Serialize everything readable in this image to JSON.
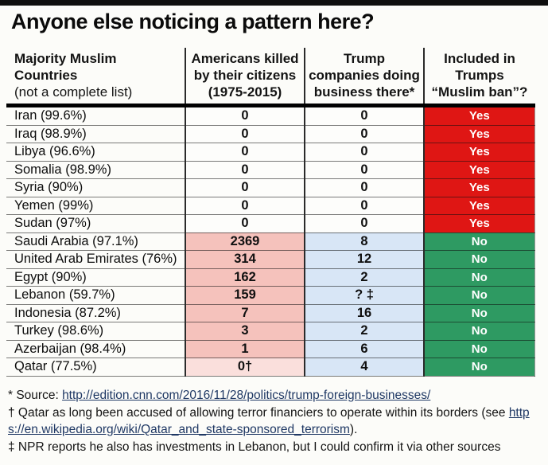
{
  "title": "Anyone else noticing a pattern here?",
  "table": {
    "headers": [
      {
        "lines": [
          "Majority Muslim Countries",
          "(not a complete list)"
        ]
      },
      {
        "lines": [
          "Americans killed",
          "by their citizens",
          "(1975-2015)"
        ]
      },
      {
        "lines": [
          "Trump",
          "companies doing",
          "business there*"
        ]
      },
      {
        "lines": [
          "Included in",
          "Trumps",
          "“Muslim ban”?"
        ]
      }
    ],
    "rows": [
      {
        "country": "Iran (99.6%)",
        "killed": "0",
        "business": "0",
        "ban": "Yes"
      },
      {
        "country": "Iraq (98.9%)",
        "killed": "0",
        "business": "0",
        "ban": "Yes"
      },
      {
        "country": "Libya (96.6%)",
        "killed": "0",
        "business": "0",
        "ban": "Yes"
      },
      {
        "country": "Somalia (98.9%)",
        "killed": "0",
        "business": "0",
        "ban": "Yes"
      },
      {
        "country": "Syria (90%)",
        "killed": "0",
        "business": "0",
        "ban": "Yes"
      },
      {
        "country": "Yemen (99%)",
        "killed": "0",
        "business": "0",
        "ban": "Yes"
      },
      {
        "country": "Sudan (97%)",
        "killed": "0",
        "business": "0",
        "ban": "Yes"
      },
      {
        "country": "Saudi Arabia (97.1%)",
        "killed": "2369",
        "business": "8",
        "ban": "No"
      },
      {
        "country": "United Arab Emirates (76%)",
        "killed": "314",
        "business": "12",
        "ban": "No"
      },
      {
        "country": "Egypt (90%)",
        "killed": "162",
        "business": "2",
        "ban": "No"
      },
      {
        "country": "Lebanon (59.7%)",
        "killed": "159",
        "business": "? ‡",
        "ban": "No"
      },
      {
        "country": "Indonesia (87.2%)",
        "killed": "7",
        "business": "16",
        "ban": "No"
      },
      {
        "country": "Turkey (98.6%)",
        "killed": "3",
        "business": "2",
        "ban": "No"
      },
      {
        "country": "Azerbaijan (98.4%)",
        "killed": "1",
        "business": "6",
        "ban": "No"
      },
      {
        "country": "Qatar (77.5%)",
        "killed": "0†",
        "business": "4",
        "ban": "No"
      }
    ]
  },
  "footnotes": {
    "source_prefix": "* Source: ",
    "source_link": "http://edition.cnn.com/2016/11/28/politics/trump-foreign-businesses/",
    "qatar_prefix": "† Qatar as long been accused of allowing terror financiers to operate within its borders (see ",
    "qatar_link": "https://en.wikipedia.org/wiki/Qatar_and_state-sponsored_terrorism",
    "qatar_suffix": ").",
    "npr_note": "‡ NPR reports he also has investments in Lebanon, but I could confirm it via other sources"
  },
  "colors": {
    "ban_yes_bg": "#df1614",
    "ban_no_bg": "#2e9a62",
    "killed_col_bg": "#f5c2bc",
    "killed_col_bg_light": "#fadfdc",
    "business_col_bg": "#d8e6f6",
    "link_color": "#1f3864",
    "yes_no_text": "#ffffff",
    "top_bar": "#0f0f0f"
  }
}
